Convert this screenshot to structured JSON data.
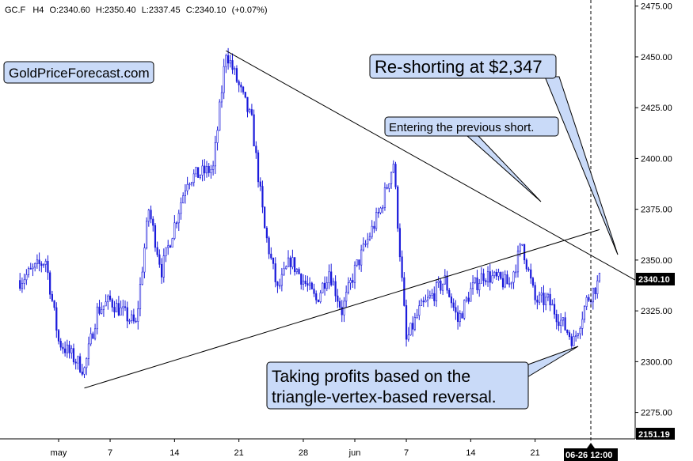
{
  "header": {
    "symbol": "GC.F",
    "timeframe": "H4",
    "open": "O:2340.60",
    "high": "H:2350.40",
    "low": "L:2337.45",
    "close": "C:2340.10",
    "change": "(+0.07%)"
  },
  "watermark": "GoldPriceForecast.com",
  "annotations": {
    "reshort": "Re-shorting at $2,347",
    "previous_short": "Entering the previous short.",
    "profits_line1": "Taking profits based on the",
    "profits_line2": "triangle-vertex-based reversal."
  },
  "price_badges": {
    "current": "2340.10",
    "bottom": "2151.19"
  },
  "crosshair_label": "06-26 12:00",
  "colors": {
    "candles": "#1a1adb",
    "callout_fill": "#c9daf8",
    "trendline": "#000000",
    "badge_fill": "#000000",
    "badge_text": "#ffffff"
  },
  "chart_data": {
    "type": "candlestick",
    "y_axis_ticks": [
      "2475.00",
      "2450.00",
      "2425.00",
      "2400.00",
      "2375.00",
      "2350.00",
      "2325.00",
      "2300.00",
      "2275.00"
    ],
    "ylim": [
      2262,
      2478
    ],
    "x_axis_labels": [
      "may",
      "7",
      "14",
      "21",
      "28",
      "jun",
      "7",
      "14",
      "21"
    ],
    "price_path_keypoints": [
      {
        "date": "Apr 26",
        "close": 2340
      },
      {
        "date": "Apr 30",
        "close": 2350
      },
      {
        "date": "May 1",
        "close": 2310
      },
      {
        "date": "May 3",
        "close": 2296
      },
      {
        "date": "May 6",
        "close": 2325
      },
      {
        "date": "May 7",
        "close": 2330
      },
      {
        "date": "May 9",
        "close": 2318
      },
      {
        "date": "May 10",
        "close": 2375
      },
      {
        "date": "May 13",
        "close": 2345
      },
      {
        "date": "May 15",
        "close": 2390
      },
      {
        "date": "May 17",
        "close": 2395
      },
      {
        "date": "May 20",
        "close": 2453
      },
      {
        "date": "May 22",
        "close": 2418
      },
      {
        "date": "May 23",
        "close": 2365
      },
      {
        "date": "May 24",
        "close": 2335
      },
      {
        "date": "May 27",
        "close": 2350
      },
      {
        "date": "May 29",
        "close": 2330
      },
      {
        "date": "May 30",
        "close": 2345
      },
      {
        "date": "May 31",
        "close": 2325
      },
      {
        "date": "Jun 3",
        "close": 2345
      },
      {
        "date": "Jun 5",
        "close": 2375
      },
      {
        "date": "Jun 6",
        "close": 2398
      },
      {
        "date": "Jun 7",
        "close": 2310
      },
      {
        "date": "Jun 10",
        "close": 2325
      },
      {
        "date": "Jun 12",
        "close": 2340
      },
      {
        "date": "Jun 13",
        "close": 2320
      },
      {
        "date": "Jun 14",
        "close": 2335
      },
      {
        "date": "Jun 17",
        "close": 2343
      },
      {
        "date": "Jun 19",
        "close": 2338
      },
      {
        "date": "Jun 20",
        "close": 2358
      },
      {
        "date": "Jun 21",
        "close": 2330
      },
      {
        "date": "Jun 24",
        "close": 2330
      },
      {
        "date": "Jun 25",
        "close": 2320
      },
      {
        "date": "Jun 26",
        "close": 2310
      },
      {
        "date": "Jun 27",
        "close": 2330
      },
      {
        "date": "Jun 28",
        "close": 2340
      }
    ],
    "trendlines": [
      {
        "from": {
          "date": "May 20",
          "price": 2453
        },
        "to": {
          "date": "Jun 28",
          "price": 2350
        }
      },
      {
        "from": {
          "date": "May 3",
          "price": 2287
        },
        "to": {
          "date": "Jun 28",
          "price": 2365
        }
      }
    ],
    "current_price": 2340.1
  }
}
